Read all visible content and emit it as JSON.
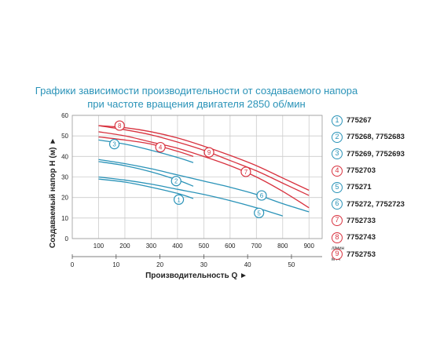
{
  "chart_title_line1": "Графики зависимости производительности от создаваемого напора",
  "chart_title_line2": "при частоте вращения двигателя 2850 об/мин",
  "colors": {
    "blue": "#2a93b8",
    "red": "#d8323f",
    "text": "#222222",
    "grid": "#cccccc"
  },
  "chart_data": {
    "type": "line",
    "title": "Графики зависимости производительности от создаваемого напора при частоте вращения двигателя 2850 об/мин",
    "ylabel": "Создаваемый напор H (м) ►",
    "xlabel": "Производительность Q ►",
    "x_unit_primary": "л/мин",
    "x_unit_secondary": "м³/ч",
    "xlim": [
      0,
      950
    ],
    "ylim": [
      0,
      60
    ],
    "x_ticks": [
      100,
      200,
      300,
      400,
      500,
      600,
      700,
      800,
      900
    ],
    "x_ticks_secondary": [
      0,
      10,
      20,
      30,
      40,
      50
    ],
    "y_ticks": [
      0,
      10,
      20,
      30,
      40,
      50,
      60
    ],
    "grid": true,
    "legend_position": "right",
    "series": [
      {
        "name": "775267",
        "marker": "1",
        "color": "blue",
        "x": [
          100,
          200,
          300,
          400,
          460
        ],
        "y": [
          29,
          27.5,
          25,
          22,
          19.5
        ]
      },
      {
        "name": "775268, 7752683",
        "marker": "2",
        "color": "blue",
        "x": [
          100,
          200,
          300,
          400,
          460
        ],
        "y": [
          37.5,
          35.5,
          32.5,
          28.5,
          25.5
        ]
      },
      {
        "name": "775269, 7752693",
        "marker": "3",
        "color": "blue",
        "x": [
          100,
          200,
          300,
          400,
          460
        ],
        "y": [
          48,
          46,
          43,
          39.5,
          37
        ]
      },
      {
        "name": "7752703",
        "marker": "4",
        "color": "red",
        "x": [
          100,
          200,
          300,
          400,
          460
        ],
        "y": [
          49.5,
          48,
          46,
          42.5,
          40
        ]
      },
      {
        "name": "775271",
        "marker": "5",
        "color": "blue",
        "x": [
          100,
          200,
          300,
          400,
          500,
          600,
          700,
          800
        ],
        "y": [
          30,
          28.5,
          26.5,
          24,
          21.5,
          18.5,
          15,
          11
        ]
      },
      {
        "name": "775272, 7752723",
        "marker": "6",
        "color": "blue",
        "x": [
          100,
          200,
          300,
          400,
          500,
          600,
          700,
          800,
          900
        ],
        "y": [
          38.5,
          36.5,
          34,
          31,
          28,
          25,
          21.5,
          17,
          13
        ]
      },
      {
        "name": "7752733",
        "marker": "7",
        "color": "red",
        "x": [
          100,
          200,
          300,
          400,
          500,
          600,
          700,
          800,
          900
        ],
        "y": [
          52,
          50,
          47,
          44,
          40,
          35.5,
          30,
          23,
          15
        ]
      },
      {
        "name": "7752743",
        "marker": "8",
        "color": "red",
        "x": [
          100,
          200,
          300,
          400,
          500,
          600,
          700,
          800,
          900
        ],
        "y": [
          55,
          54,
          52,
          49,
          45,
          40.5,
          35.5,
          29.5,
          23.5
        ]
      },
      {
        "name": "7752753",
        "marker": "9",
        "color": "red",
        "x": [
          100,
          200,
          300,
          400,
          500,
          600,
          700,
          800,
          900
        ],
        "y": [
          55,
          53,
          50.5,
          47,
          43,
          38,
          33,
          27,
          21
        ]
      }
    ],
    "curve_labels": [
      {
        "marker": "1",
        "x": 405,
        "y": 19
      },
      {
        "marker": "2",
        "x": 395,
        "y": 28
      },
      {
        "marker": "3",
        "x": 160,
        "y": 46
      },
      {
        "marker": "4",
        "x": 335,
        "y": 44.5
      },
      {
        "marker": "5",
        "x": 710,
        "y": 12.5
      },
      {
        "marker": "6",
        "x": 720,
        "y": 21
      },
      {
        "marker": "7",
        "x": 660,
        "y": 32.5
      },
      {
        "marker": "8",
        "x": 180,
        "y": 55
      },
      {
        "marker": "9",
        "x": 520,
        "y": 42
      }
    ]
  }
}
